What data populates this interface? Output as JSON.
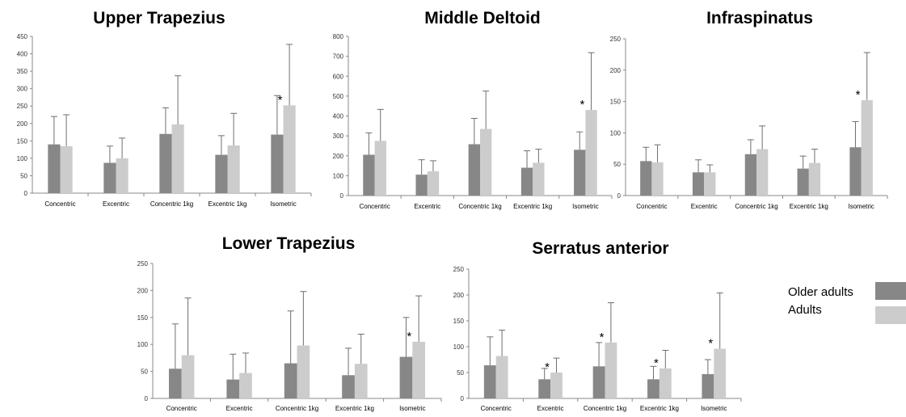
{
  "chart_data": [
    {
      "type": "bar",
      "title": "Upper Trapezius",
      "categories": [
        "Concentric",
        "Excentric",
        "Concentric 1kg",
        "Excentric 1kg",
        "Isometric"
      ],
      "ylim": [
        0,
        450
      ],
      "yticks": [
        0,
        50,
        100,
        150,
        200,
        250,
        300,
        350,
        400,
        450
      ],
      "series": [
        {
          "name": "Older adults",
          "values": [
            140,
            87,
            170,
            110,
            168
          ],
          "errors": [
            80,
            48,
            75,
            55,
            112
          ]
        },
        {
          "name": "Adults",
          "values": [
            135,
            100,
            197,
            137,
            252
          ],
          "errors": [
            90,
            58,
            140,
            92,
            175
          ]
        }
      ],
      "significant": [
        4
      ],
      "grid": false
    },
    {
      "type": "bar",
      "title": "Middle Deltoid",
      "categories": [
        "Concentric",
        "Excentric",
        "Concentric 1kg",
        "Excentric 1kg",
        "Isometric"
      ],
      "ylim": [
        0,
        800
      ],
      "yticks": [
        0,
        100,
        200,
        300,
        400,
        500,
        600,
        700,
        800
      ],
      "series": [
        {
          "name": "Older adults",
          "values": [
            205,
            105,
            258,
            140,
            230
          ],
          "errors": [
            110,
            75,
            130,
            85,
            90
          ]
        },
        {
          "name": "Adults",
          "values": [
            275,
            122,
            335,
            165,
            430
          ],
          "errors": [
            158,
            53,
            190,
            68,
            288
          ]
        }
      ],
      "significant": [
        4
      ],
      "grid": false
    },
    {
      "type": "bar",
      "title": "Infraspinatus",
      "categories": [
        "Concentric",
        "Excentric",
        "Concentric 1kg",
        "Excentric 1kg",
        "Isometric"
      ],
      "ylim": [
        0,
        250
      ],
      "yticks": [
        0,
        50,
        100,
        150,
        200,
        250
      ],
      "series": [
        {
          "name": "Older adults",
          "values": [
            55,
            37,
            66,
            43,
            77
          ],
          "errors": [
            22,
            20,
            23,
            20,
            41
          ]
        },
        {
          "name": "Adults",
          "values": [
            53,
            37,
            74,
            52,
            152
          ],
          "errors": [
            28,
            12,
            37,
            22,
            76
          ]
        }
      ],
      "significant": [
        4
      ],
      "grid": false
    },
    {
      "type": "bar",
      "title": "Lower Trapezius",
      "categories": [
        "Concentric",
        "Excentric",
        "Concentric 1kg",
        "Excentric 1kg",
        "Isometric"
      ],
      "ylim": [
        0,
        250
      ],
      "yticks": [
        0,
        50,
        100,
        150,
        200,
        250
      ],
      "series": [
        {
          "name": "Older adults",
          "values": [
            55,
            35,
            65,
            43,
            77
          ],
          "errors": [
            83,
            47,
            97,
            50,
            73
          ]
        },
        {
          "name": "Adults",
          "values": [
            80,
            47,
            98,
            64,
            105
          ],
          "errors": [
            106,
            37,
            100,
            55,
            85
          ]
        }
      ],
      "significant": [
        4
      ],
      "grid": false
    },
    {
      "type": "bar",
      "title": "Serratus anterior",
      "categories": [
        "Concentric",
        "Excentric",
        "Concentric 1kg",
        "Excentric 1kg",
        "Isometric"
      ],
      "ylim": [
        0,
        250
      ],
      "yticks": [
        0,
        50,
        100,
        150,
        200,
        250
      ],
      "series": [
        {
          "name": "Older adults",
          "values": [
            64,
            37,
            62,
            37,
            47
          ],
          "errors": [
            55,
            21,
            46,
            25,
            28
          ]
        },
        {
          "name": "Adults",
          "values": [
            82,
            50,
            108,
            58,
            96
          ],
          "errors": [
            50,
            28,
            77,
            35,
            108
          ]
        }
      ],
      "significant": [
        1,
        2,
        3,
        4
      ],
      "grid": false
    }
  ],
  "legend": {
    "items": [
      {
        "label": "Older adults",
        "color": "#878787"
      },
      {
        "label": "Adults",
        "color": "#cccccc"
      }
    ],
    "placement": "right"
  },
  "star_symbol": "*",
  "colors": {
    "older": "#878787",
    "adults": "#cccccc",
    "errorbar": "#6e6e6e",
    "axis": "#888888"
  }
}
